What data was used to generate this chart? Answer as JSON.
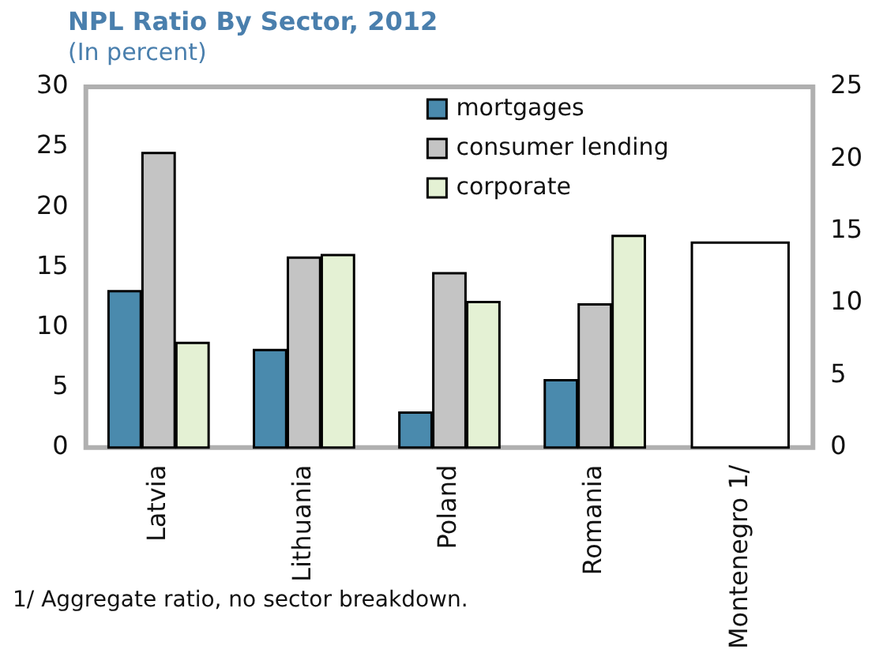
{
  "chart_data": {
    "type": "bar",
    "title": "NPL Ratio By Sector, 2012",
    "subtitle": "(In percent)",
    "categories": [
      "Latvia",
      "Lithuania",
      "Poland",
      "Romania",
      "Montenegro 1/"
    ],
    "series": [
      {
        "name": "mortgages",
        "color": "#4a8aad",
        "values": [
          13,
          8.1,
          2.9,
          5.6,
          null
        ]
      },
      {
        "name": "consumer lending",
        "color": "#c4c4c4",
        "values": [
          24.5,
          15.8,
          14.5,
          11.9,
          null
        ]
      },
      {
        "name": "corporate",
        "color": "#e4f1d4",
        "values": [
          8.7,
          16,
          12.1,
          17.6,
          null
        ]
      },
      {
        "color": "#ffffff",
        "axis": "y2",
        "values": [
          null,
          null,
          null,
          null,
          14.2
        ]
      }
    ],
    "ylim": [
      0,
      30
    ],
    "yticks": [
      0,
      5,
      10,
      15,
      20,
      25,
      30
    ],
    "y2lim": [
      0,
      25
    ],
    "y2ticks": [
      0,
      5,
      10,
      15,
      20,
      25
    ],
    "grid": false,
    "legend": "top right",
    "annotations": [
      "1/ Aggregate ratio, no sector breakdown."
    ]
  }
}
